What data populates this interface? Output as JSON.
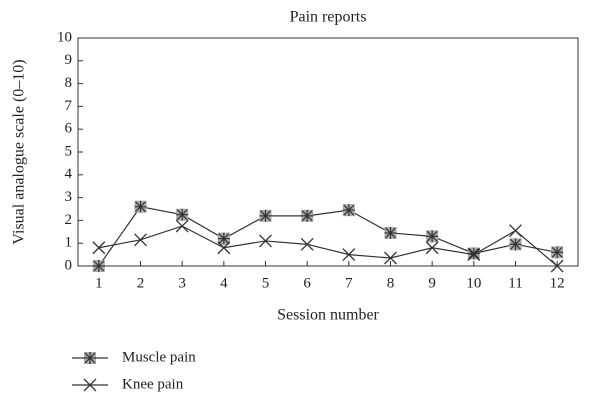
{
  "chart_data": {
    "type": "line",
    "title": "Pain reports",
    "xlabel": "Session number",
    "ylabel": "Visual analogue scale (0–10)",
    "x": [
      1,
      2,
      3,
      4,
      5,
      6,
      7,
      8,
      9,
      10,
      11,
      12
    ],
    "xlim": [
      0.5,
      12.5
    ],
    "xticks": [
      1,
      2,
      3,
      4,
      5,
      6,
      7,
      8,
      9,
      10,
      11,
      12
    ],
    "ylim": [
      0,
      10
    ],
    "yticks": [
      0,
      1,
      2,
      3,
      4,
      5,
      6,
      7,
      8,
      9,
      10
    ],
    "legend": "bottom-left",
    "series": [
      {
        "name": "Muscle pain",
        "color": "#333333",
        "marker": "asterisk-square",
        "values": [
          0,
          2.6,
          2.25,
          1.2,
          2.2,
          2.2,
          2.45,
          1.45,
          1.3,
          0.55,
          0.95,
          0.6
        ]
      },
      {
        "name": "Knee pain",
        "color": "#333333",
        "marker": "x",
        "values": [
          0.8,
          1.15,
          1.75,
          0.8,
          1.1,
          0.95,
          0.5,
          0.35,
          0.8,
          0.5,
          1.55,
          0
        ]
      }
    ]
  }
}
